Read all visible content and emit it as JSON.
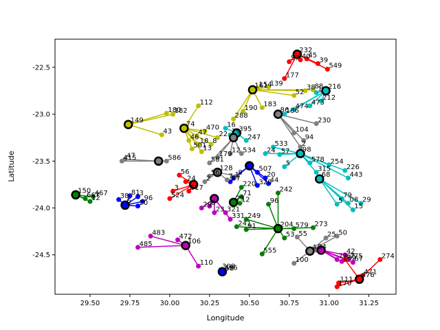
{
  "chart_data": {
    "type": "scatter",
    "xlabel": "Longitude",
    "ylabel": "Latitude",
    "xlim": [
      29.28,
      31.42
    ],
    "ylim": [
      -24.92,
      -22.2
    ],
    "xticks": [
      "29.50",
      "29.75",
      "30.00",
      "30.25",
      "30.50",
      "30.75",
      "31.00",
      "31.25"
    ],
    "yticks": [
      "-22.5",
      "-23.0",
      "-23.5",
      "-24.0",
      "-24.5"
    ],
    "xtick_values": [
      29.5,
      29.75,
      30.0,
      30.25,
      30.5,
      30.75,
      31.0,
      31.25
    ],
    "ytick_values": [
      -22.5,
      -23.0,
      -23.5,
      -24.0,
      -24.5
    ],
    "grid": false,
    "colors": {
      "red": "#ff0000",
      "yellow": "#bfbf00",
      "cyan": "#00bfbf",
      "blue": "#0000ff",
      "magenta": "#bf00bf",
      "green": "#008000",
      "gray": "#808080",
      "black": "#000000"
    },
    "clusters": [
      {
        "color": "red",
        "hub": [
          30.8,
          -22.36
        ],
        "hub_label": "232",
        "members": [
          [
            30.75,
            -22.44,
            "57"
          ],
          [
            30.82,
            -22.42,
            "40"
          ],
          [
            30.86,
            -22.41,
            "45"
          ],
          [
            30.93,
            -22.46,
            "39"
          ],
          [
            30.99,
            -22.52,
            "549"
          ],
          [
            30.72,
            -22.62,
            "177"
          ]
        ]
      },
      {
        "color": "yellow",
        "hub": [
          29.74,
          -23.11
        ],
        "hub_label": "149",
        "members": [
          [
            29.98,
            -22.99,
            "180"
          ],
          [
            30.02,
            -23.0,
            "182"
          ],
          [
            29.95,
            -23.22,
            "43"
          ]
        ]
      },
      {
        "color": "yellow",
        "hub": [
          30.09,
          -23.15
        ],
        "hub_label": "74",
        "members": [
          [
            30.18,
            -22.91,
            "112"
          ],
          [
            30.22,
            -23.18,
            "470"
          ],
          [
            30.17,
            -23.23,
            "47"
          ],
          [
            30.12,
            -23.28,
            "46"
          ],
          [
            30.14,
            -23.37,
            "501"
          ],
          [
            30.2,
            -23.4,
            "13"
          ],
          [
            30.26,
            -23.32,
            "8"
          ],
          [
            30.3,
            -23.25,
            "22"
          ],
          [
            30.18,
            -23.32,
            "18"
          ]
        ]
      },
      {
        "color": "yellow",
        "hub": [
          30.52,
          -22.74
        ],
        "hub_label": "161",
        "members": [
          [
            30.55,
            -22.72,
            "154"
          ],
          [
            30.62,
            -22.71,
            "139"
          ],
          [
            30.78,
            -22.8,
            "52"
          ],
          [
            30.85,
            -22.75,
            "38"
          ],
          [
            30.9,
            -22.74,
            "88"
          ],
          [
            30.58,
            -22.93,
            "183"
          ],
          [
            30.46,
            -22.97,
            "190"
          ],
          [
            30.4,
            -23.05,
            "288"
          ]
        ]
      },
      {
        "color": "cyan",
        "hub": [
          30.98,
          -22.75
        ],
        "hub_label": "216",
        "members": [
          [
            30.92,
            -22.77,
            "1"
          ],
          [
            30.95,
            -22.86,
            "212"
          ],
          [
            30.88,
            -22.91,
            "473"
          ],
          [
            30.78,
            -22.95,
            "474"
          ],
          [
            30.72,
            -23.0,
            "186"
          ]
        ]
      },
      {
        "color": "gray",
        "hub": [
          30.68,
          -23.0
        ],
        "hub_label": "86",
        "members": [
          [
            30.92,
            -23.1,
            "230"
          ],
          [
            30.78,
            -23.2,
            "104"
          ],
          [
            30.84,
            -23.28,
            "94"
          ],
          [
            30.82,
            -23.35,
            "2"
          ]
        ]
      },
      {
        "color": "cyan",
        "hub": [
          30.82,
          -23.42
        ],
        "hub_label": "98",
        "members": [
          [
            30.65,
            -23.35,
            "533"
          ],
          [
            30.69,
            -23.43,
            "57"
          ],
          [
            30.72,
            -23.56,
            "5"
          ],
          [
            30.88,
            -23.52,
            "578"
          ],
          [
            31.0,
            -23.54,
            "254"
          ],
          [
            31.1,
            -23.6,
            "226"
          ],
          [
            30.92,
            -23.62,
            "315"
          ],
          [
            31.12,
            -23.68,
            "443"
          ],
          [
            30.6,
            -23.42,
            "24"
          ]
        ]
      },
      {
        "color": "cyan",
        "hub": [
          30.94,
          -23.69
        ],
        "hub_label": "68",
        "members": [
          [
            31.08,
            -23.9,
            "79"
          ],
          [
            31.12,
            -23.95,
            "08"
          ],
          [
            31.15,
            -24.02,
            "15"
          ],
          [
            31.2,
            -23.95,
            "29"
          ],
          [
            31.05,
            -23.96,
            "5"
          ]
        ]
      },
      {
        "color": "cyan",
        "hub": [
          30.42,
          -23.2
        ],
        "hub_label": "395",
        "members": [
          [
            30.35,
            -23.15,
            "16"
          ],
          [
            30.48,
            -23.28,
            "247"
          ],
          [
            30.38,
            -23.22,
            "29"
          ]
        ]
      },
      {
        "color": "gray",
        "hub": [
          30.4,
          -23.25
        ],
        "hub_label": "",
        "members": [
          [
            30.45,
            -23.42,
            "534"
          ],
          [
            30.38,
            -23.42,
            "12"
          ],
          [
            30.3,
            -23.46,
            "179"
          ],
          [
            30.25,
            -23.52,
            "581"
          ]
        ]
      },
      {
        "color": "blue",
        "hub": [
          30.5,
          -23.55
        ],
        "hub_label": "",
        "members": [
          [
            30.55,
            -23.62,
            "507"
          ],
          [
            30.6,
            -23.68,
            "20"
          ],
          [
            30.62,
            -23.74,
            "44"
          ],
          [
            30.55,
            -23.76,
            "320"
          ],
          [
            30.4,
            -23.68,
            "1"
          ],
          [
            30.38,
            -23.72,
            "87"
          ]
        ]
      },
      {
        "color": "blue",
        "hub": [
          29.72,
          -23.97
        ],
        "hub_label": "5",
        "members": [
          [
            29.68,
            -23.91,
            "38"
          ],
          [
            29.8,
            -23.88,
            "3"
          ],
          [
            29.83,
            -23.93,
            "96"
          ],
          [
            29.8,
            -23.98,
            "20"
          ],
          [
            29.75,
            -23.87,
            "81"
          ]
        ]
      },
      {
        "color": "green",
        "hub": [
          29.41,
          -23.86
        ],
        "hub_label": "150",
        "members": [
          [
            29.47,
            -23.9,
            "667"
          ],
          [
            29.52,
            -23.88,
            "467"
          ],
          [
            29.5,
            -23.93,
            "12"
          ]
        ]
      },
      {
        "color": "red",
        "hub": [
          30.15,
          -23.75
        ],
        "hub_label": "",
        "members": [
          [
            30.06,
            -23.65,
            "56"
          ],
          [
            30.1,
            -23.72,
            "24"
          ],
          [
            30.02,
            -23.82,
            "3"
          ],
          [
            30.0,
            -23.9,
            "524"
          ],
          [
            30.12,
            -23.82,
            "517"
          ]
        ]
      },
      {
        "color": "magenta",
        "hub": [
          30.28,
          -23.9
        ],
        "hub_label": "",
        "members": [
          [
            30.2,
            -24.0,
            "29"
          ],
          [
            30.28,
            -24.05,
            "23"
          ],
          [
            30.35,
            -24.05,
            "321"
          ],
          [
            30.38,
            -24.12,
            "331"
          ],
          [
            30.25,
            -23.98,
            "6"
          ]
        ]
      },
      {
        "color": "green",
        "hub": [
          30.4,
          -23.94
        ],
        "hub_label": "29",
        "members": [
          [
            30.45,
            -23.78,
            "220"
          ],
          [
            30.45,
            -23.88,
            "71"
          ],
          [
            30.44,
            -23.95,
            "12"
          ]
        ]
      },
      {
        "color": "gray",
        "hub": [
          30.3,
          -23.62
        ],
        "hub_label": "128",
        "members": [
          [
            30.25,
            -23.66,
            "56"
          ],
          [
            30.22,
            -23.72,
            "2"
          ],
          [
            30.36,
            -23.7,
            "7"
          ],
          [
            30.42,
            -23.66,
            "8"
          ]
        ]
      },
      {
        "color": "green",
        "hub": [
          30.68,
          -24.22
        ],
        "hub_label": "204",
        "members": [
          [
            30.62,
            -23.96,
            "96"
          ],
          [
            30.68,
            -23.84,
            "242"
          ],
          [
            30.48,
            -24.12,
            "249"
          ],
          [
            30.42,
            -24.2,
            "241"
          ],
          [
            30.48,
            -24.23,
            "91"
          ],
          [
            30.58,
            -24.49,
            "555"
          ],
          [
            30.78,
            -24.22,
            "579"
          ],
          [
            30.9,
            -24.21,
            "273"
          ],
          [
            30.72,
            -24.32,
            "53"
          ]
        ]
      },
      {
        "color": "gray",
        "hub": [
          30.88,
          -24.46
        ],
        "hub_label": "4",
        "members": [
          [
            30.8,
            -24.31,
            "55"
          ],
          [
            30.92,
            -24.45,
            "84"
          ],
          [
            30.98,
            -24.32,
            "25"
          ],
          [
            31.05,
            -24.3,
            "50"
          ],
          [
            30.78,
            -24.59,
            "100"
          ]
        ]
      },
      {
        "color": "magenta",
        "hub": [
          30.95,
          -24.45
        ],
        "hub_label": "",
        "members": [
          [
            31.05,
            -24.55,
            "77"
          ],
          [
            31.1,
            -24.5,
            "42"
          ],
          [
            31.08,
            -24.57,
            "262"
          ],
          [
            31.12,
            -24.55,
            "275"
          ],
          [
            31.15,
            -24.58,
            "67"
          ]
        ]
      },
      {
        "color": "red",
        "hub": [
          31.19,
          -24.76
        ],
        "hub_label": "476",
        "members": [
          [
            31.21,
            -24.72,
            "471"
          ],
          [
            31.32,
            -24.55,
            "274"
          ],
          [
            31.1,
            -24.55,
            "62"
          ],
          [
            31.06,
            -24.8,
            "111"
          ],
          [
            31.05,
            -24.84,
            "170"
          ]
        ]
      },
      {
        "color": "magenta",
        "hub": [
          30.1,
          -24.4
        ],
        "hub_label": "106",
        "members": [
          [
            29.88,
            -24.3,
            "483"
          ],
          [
            30.05,
            -24.34,
            "472"
          ],
          [
            29.8,
            -24.42,
            "485"
          ],
          [
            30.18,
            -24.62,
            "110"
          ]
        ]
      },
      {
        "color": "blue",
        "hub": [
          30.33,
          -24.68
        ],
        "hub_label": "496",
        "members": [
          [
            30.32,
            -24.66,
            "308"
          ],
          [
            30.34,
            -24.68,
            "58"
          ]
        ]
      },
      {
        "color": "gray",
        "hub": [
          29.93,
          -23.5
        ],
        "hub_label": "",
        "members": [
          [
            29.7,
            -23.5,
            "415"
          ],
          [
            29.72,
            -23.48,
            "47"
          ],
          [
            29.98,
            -23.5,
            "586"
          ]
        ]
      }
    ]
  }
}
